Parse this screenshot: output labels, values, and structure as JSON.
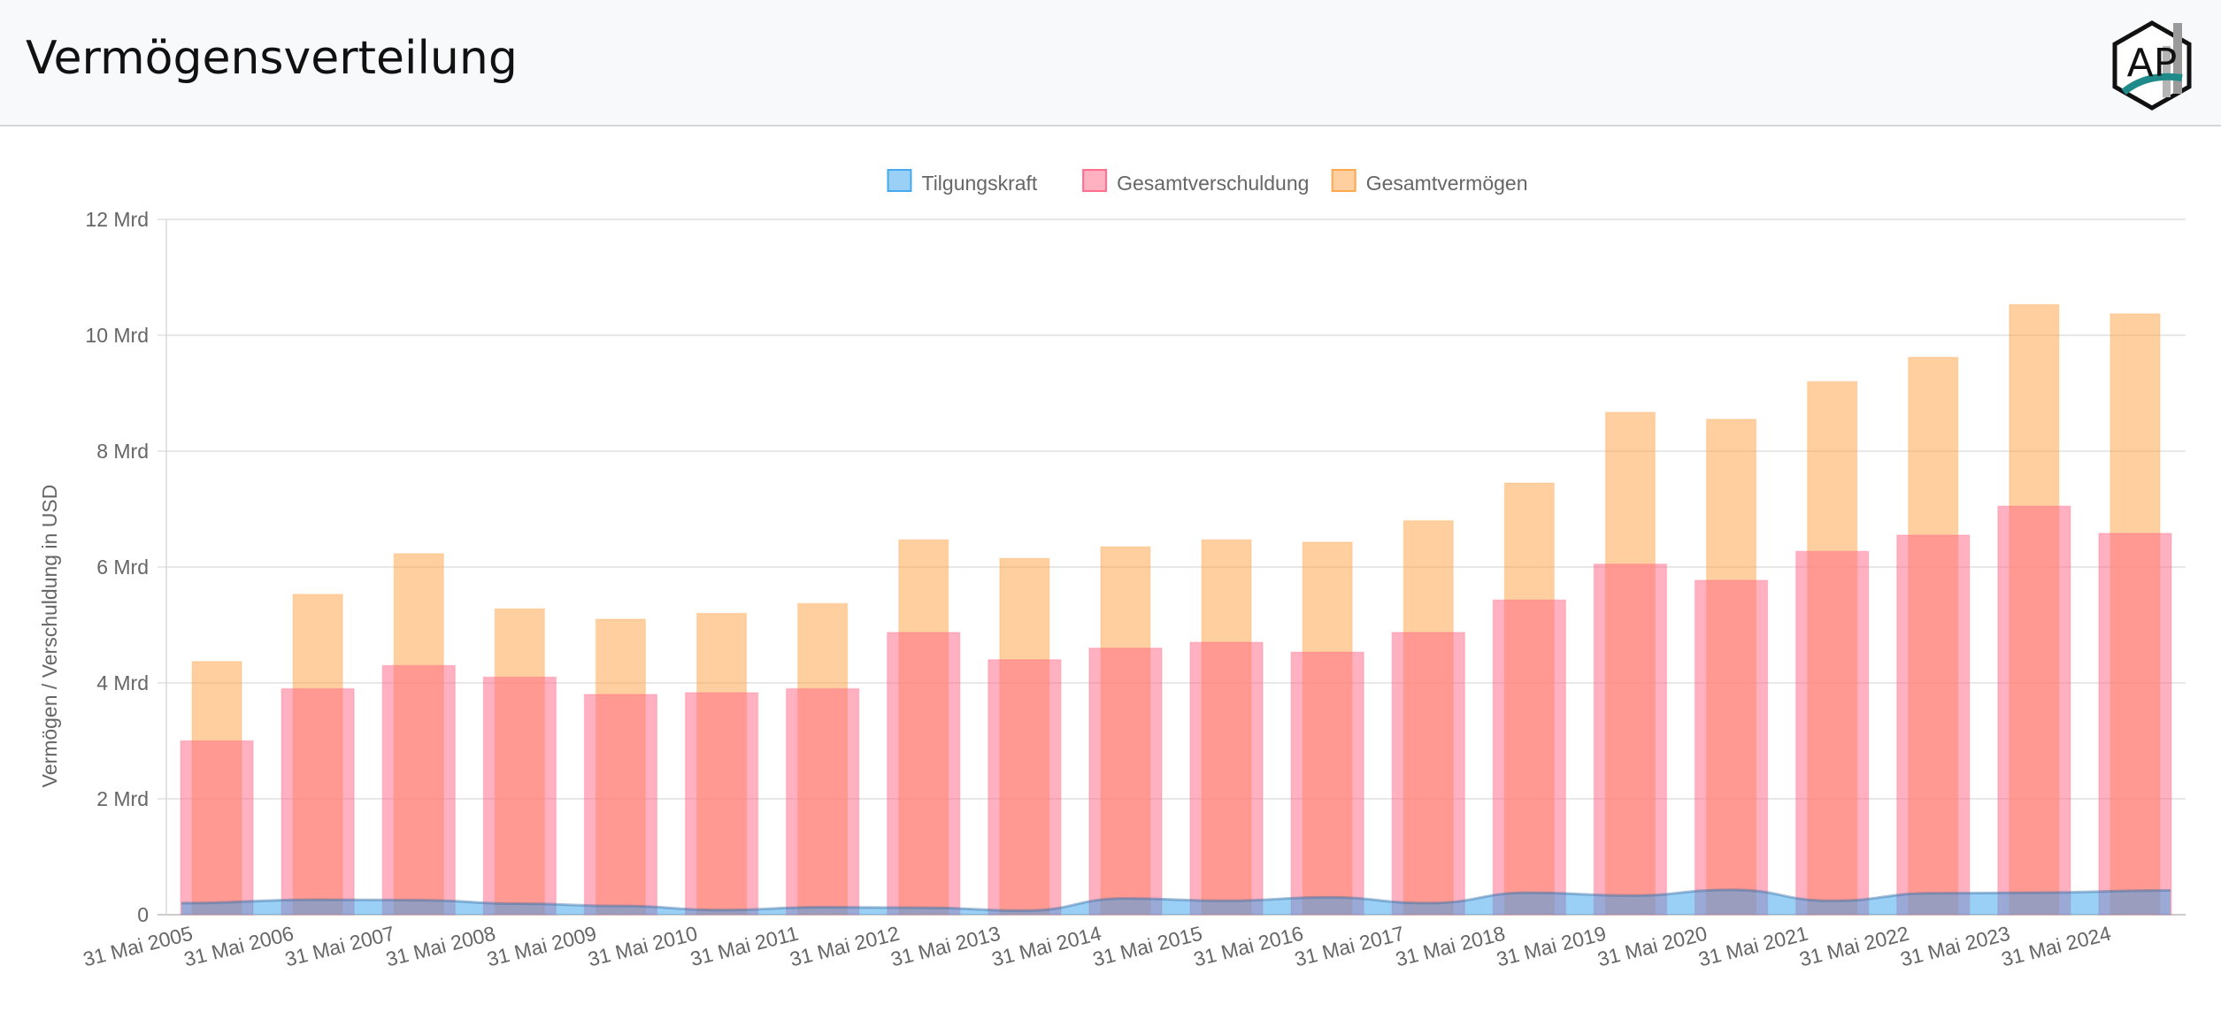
{
  "header": {
    "title": "Vermögensverteilung",
    "logo_text": "AP"
  },
  "chart_data": {
    "type": "bar",
    "title": "",
    "xlabel": "",
    "ylabel": "Vermögen / Verschuldung in USD",
    "ylim": [
      0,
      12
    ],
    "y_ticks": [
      {
        "value": 0,
        "label": "0"
      },
      {
        "value": 2,
        "label": "2 Mrd"
      },
      {
        "value": 4,
        "label": "4 Mrd"
      },
      {
        "value": 6,
        "label": "6 Mrd"
      },
      {
        "value": 8,
        "label": "8 Mrd"
      },
      {
        "value": 10,
        "label": "10 Mrd"
      },
      {
        "value": 12,
        "label": "12 Mrd"
      }
    ],
    "categories": [
      "31 Mai 2005",
      "31 Mai 2006",
      "31 Mai 2007",
      "31 Mai 2008",
      "31 Mai 2009",
      "31 Mai 2010",
      "31 Mai 2011",
      "31 Mai 2012",
      "31 Mai 2013",
      "31 Mai 2014",
      "31 Mai 2015",
      "31 Mai 2016",
      "31 Mai 2017",
      "31 Mai 2018",
      "31 Mai 2019",
      "31 Mai 2020",
      "31 Mai 2021",
      "31 Mai 2022",
      "31 Mai 2023",
      "31 Mai 2024"
    ],
    "grid": true,
    "legend_position": "top-center",
    "series": [
      {
        "name": "Tilgungskraft",
        "type": "area",
        "color": "#36a2eb",
        "values": [
          0.2,
          0.26,
          0.25,
          0.19,
          0.15,
          0.08,
          0.13,
          0.12,
          0.07,
          0.28,
          0.24,
          0.3,
          0.2,
          0.38,
          0.33,
          0.43,
          0.24,
          0.37,
          0.38,
          0.42
        ]
      },
      {
        "name": "Gesamtverschuldung",
        "type": "bar",
        "color": "#ff6384",
        "values": [
          3.0,
          3.9,
          4.3,
          4.1,
          3.8,
          3.83,
          3.9,
          4.87,
          4.4,
          4.6,
          4.7,
          4.53,
          4.87,
          5.43,
          6.05,
          5.77,
          6.27,
          6.55,
          7.05,
          6.58
        ]
      },
      {
        "name": "Gesamtvermögen",
        "type": "bar",
        "color": "#ffa040",
        "values": [
          4.37,
          5.53,
          6.23,
          5.28,
          5.1,
          5.2,
          5.37,
          6.47,
          6.15,
          6.35,
          6.47,
          6.43,
          6.8,
          7.45,
          8.67,
          8.55,
          9.2,
          9.62,
          10.53,
          10.37
        ]
      }
    ]
  }
}
